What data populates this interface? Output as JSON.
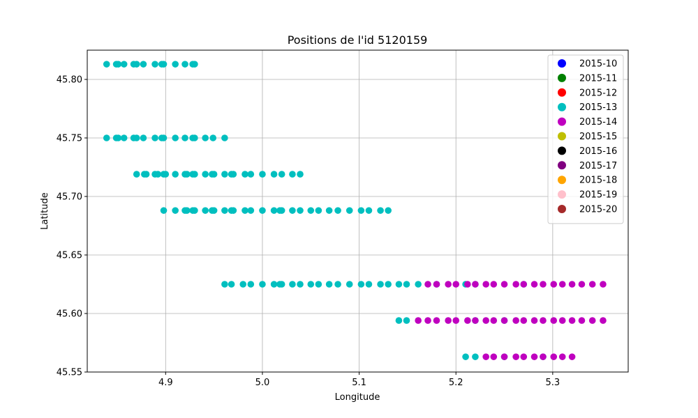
{
  "chart_data": {
    "type": "scatter",
    "title": "Positions de l'id 5120159",
    "xlabel": "Longitude",
    "ylabel": "Latitude",
    "xlim": [
      4.819,
      5.378
    ],
    "ylim": [
      45.55,
      45.825
    ],
    "xticks": [
      4.9,
      5.0,
      5.1,
      5.2,
      5.3
    ],
    "xtick_labels": [
      "4.9",
      "5.0",
      "5.1",
      "5.2",
      "5.3"
    ],
    "yticks": [
      45.55,
      45.6,
      45.65,
      45.7,
      45.75,
      45.8
    ],
    "ytick_labels": [
      "45.55",
      "45.60",
      "45.65",
      "45.70",
      "45.75",
      "45.80"
    ],
    "grid": true,
    "legend_position": "top-right",
    "series": [
      {
        "name": "2015-10",
        "color": "#0000ff",
        "points": []
      },
      {
        "name": "2015-11",
        "color": "#008000",
        "points": []
      },
      {
        "name": "2015-12",
        "color": "#ff0000",
        "points": []
      },
      {
        "name": "2015-13",
        "color": "#00bfbf",
        "points": [
          [
            4.839,
            45.813
          ],
          [
            4.849,
            45.813
          ],
          [
            4.851,
            45.813
          ],
          [
            4.857,
            45.813
          ],
          [
            4.867,
            45.813
          ],
          [
            4.87,
            45.813
          ],
          [
            4.877,
            45.813
          ],
          [
            4.889,
            45.813
          ],
          [
            4.896,
            45.813
          ],
          [
            4.898,
            45.813
          ],
          [
            4.91,
            45.813
          ],
          [
            4.92,
            45.813
          ],
          [
            4.928,
            45.813
          ],
          [
            4.93,
            45.813
          ],
          [
            4.839,
            45.75
          ],
          [
            4.849,
            45.75
          ],
          [
            4.851,
            45.75
          ],
          [
            4.857,
            45.75
          ],
          [
            4.867,
            45.75
          ],
          [
            4.87,
            45.75
          ],
          [
            4.877,
            45.75
          ],
          [
            4.889,
            45.75
          ],
          [
            4.896,
            45.75
          ],
          [
            4.898,
            45.75
          ],
          [
            4.91,
            45.75
          ],
          [
            4.92,
            45.75
          ],
          [
            4.928,
            45.75
          ],
          [
            4.93,
            45.75
          ],
          [
            4.941,
            45.75
          ],
          [
            4.949,
            45.75
          ],
          [
            4.961,
            45.75
          ],
          [
            4.87,
            45.719
          ],
          [
            4.878,
            45.719
          ],
          [
            4.88,
            45.719
          ],
          [
            4.889,
            45.719
          ],
          [
            4.892,
            45.719
          ],
          [
            4.898,
            45.719
          ],
          [
            4.9,
            45.719
          ],
          [
            4.91,
            45.719
          ],
          [
            4.92,
            45.719
          ],
          [
            4.922,
            45.719
          ],
          [
            4.928,
            45.719
          ],
          [
            4.93,
            45.719
          ],
          [
            4.941,
            45.719
          ],
          [
            4.948,
            45.719
          ],
          [
            4.95,
            45.719
          ],
          [
            4.961,
            45.719
          ],
          [
            4.968,
            45.719
          ],
          [
            4.97,
            45.719
          ],
          [
            4.982,
            45.719
          ],
          [
            4.988,
            45.719
          ],
          [
            5.0,
            45.719
          ],
          [
            5.012,
            45.719
          ],
          [
            5.02,
            45.719
          ],
          [
            5.031,
            45.719
          ],
          [
            5.039,
            45.719
          ],
          [
            4.898,
            45.688
          ],
          [
            4.91,
            45.688
          ],
          [
            4.92,
            45.688
          ],
          [
            4.922,
            45.688
          ],
          [
            4.928,
            45.688
          ],
          [
            4.93,
            45.688
          ],
          [
            4.941,
            45.688
          ],
          [
            4.948,
            45.688
          ],
          [
            4.95,
            45.688
          ],
          [
            4.961,
            45.688
          ],
          [
            4.968,
            45.688
          ],
          [
            4.97,
            45.688
          ],
          [
            4.982,
            45.688
          ],
          [
            4.988,
            45.688
          ],
          [
            5.0,
            45.688
          ],
          [
            5.012,
            45.688
          ],
          [
            5.018,
            45.688
          ],
          [
            5.02,
            45.688
          ],
          [
            5.031,
            45.688
          ],
          [
            5.039,
            45.688
          ],
          [
            5.05,
            45.688
          ],
          [
            5.058,
            45.688
          ],
          [
            5.069,
            45.688
          ],
          [
            5.078,
            45.688
          ],
          [
            5.09,
            45.688
          ],
          [
            5.102,
            45.688
          ],
          [
            5.11,
            45.688
          ],
          [
            5.122,
            45.688
          ],
          [
            5.13,
            45.688
          ],
          [
            4.961,
            45.625
          ],
          [
            4.968,
            45.625
          ],
          [
            4.98,
            45.625
          ],
          [
            4.988,
            45.625
          ],
          [
            5.0,
            45.625
          ],
          [
            5.012,
            45.625
          ],
          [
            5.018,
            45.625
          ],
          [
            5.02,
            45.625
          ],
          [
            5.031,
            45.625
          ],
          [
            5.039,
            45.625
          ],
          [
            5.05,
            45.625
          ],
          [
            5.058,
            45.625
          ],
          [
            5.069,
            45.625
          ],
          [
            5.078,
            45.625
          ],
          [
            5.09,
            45.625
          ],
          [
            5.102,
            45.625
          ],
          [
            5.11,
            45.625
          ],
          [
            5.122,
            45.625
          ],
          [
            5.13,
            45.625
          ],
          [
            5.141,
            45.625
          ],
          [
            5.149,
            45.625
          ],
          [
            5.161,
            45.625
          ],
          [
            5.18,
            45.625
          ],
          [
            5.21,
            45.625
          ],
          [
            5.22,
            45.625
          ],
          [
            5.27,
            45.625
          ],
          [
            5.141,
            45.594
          ],
          [
            5.149,
            45.594
          ],
          [
            5.22,
            45.594
          ],
          [
            5.25,
            45.594
          ],
          [
            5.21,
            45.563
          ],
          [
            5.22,
            45.563
          ],
          [
            5.25,
            45.563
          ],
          [
            5.29,
            45.563
          ]
        ]
      },
      {
        "name": "2015-14",
        "color": "#bf00bf",
        "points": [
          [
            5.171,
            45.625
          ],
          [
            5.18,
            45.625
          ],
          [
            5.192,
            45.625
          ],
          [
            5.2,
            45.625
          ],
          [
            5.212,
            45.625
          ],
          [
            5.22,
            45.625
          ],
          [
            5.231,
            45.625
          ],
          [
            5.239,
            45.625
          ],
          [
            5.25,
            45.625
          ],
          [
            5.262,
            45.625
          ],
          [
            5.27,
            45.625
          ],
          [
            5.281,
            45.625
          ],
          [
            5.29,
            45.625
          ],
          [
            5.301,
            45.625
          ],
          [
            5.31,
            45.625
          ],
          [
            5.32,
            45.625
          ],
          [
            5.33,
            45.625
          ],
          [
            5.341,
            45.625
          ],
          [
            5.352,
            45.625
          ],
          [
            5.161,
            45.594
          ],
          [
            5.171,
            45.594
          ],
          [
            5.18,
            45.594
          ],
          [
            5.192,
            45.594
          ],
          [
            5.2,
            45.594
          ],
          [
            5.212,
            45.594
          ],
          [
            5.22,
            45.594
          ],
          [
            5.231,
            45.594
          ],
          [
            5.239,
            45.594
          ],
          [
            5.25,
            45.594
          ],
          [
            5.262,
            45.594
          ],
          [
            5.27,
            45.594
          ],
          [
            5.281,
            45.594
          ],
          [
            5.29,
            45.594
          ],
          [
            5.301,
            45.594
          ],
          [
            5.31,
            45.594
          ],
          [
            5.32,
            45.594
          ],
          [
            5.33,
            45.594
          ],
          [
            5.341,
            45.594
          ],
          [
            5.352,
            45.594
          ],
          [
            5.231,
            45.563
          ],
          [
            5.239,
            45.563
          ],
          [
            5.25,
            45.563
          ],
          [
            5.262,
            45.563
          ],
          [
            5.27,
            45.563
          ],
          [
            5.281,
            45.563
          ],
          [
            5.29,
            45.563
          ],
          [
            5.301,
            45.563
          ],
          [
            5.31,
            45.563
          ],
          [
            5.32,
            45.563
          ]
        ]
      },
      {
        "name": "2015-15",
        "color": "#bfbf00",
        "points": []
      },
      {
        "name": "2015-16",
        "color": "#000000",
        "points": []
      },
      {
        "name": "2015-17",
        "color": "#800080",
        "points": []
      },
      {
        "name": "2015-18",
        "color": "#ffa500",
        "points": []
      },
      {
        "name": "2015-19",
        "color": "#ffc0cb",
        "points": []
      },
      {
        "name": "2015-20",
        "color": "#a52a2a",
        "points": []
      }
    ]
  }
}
